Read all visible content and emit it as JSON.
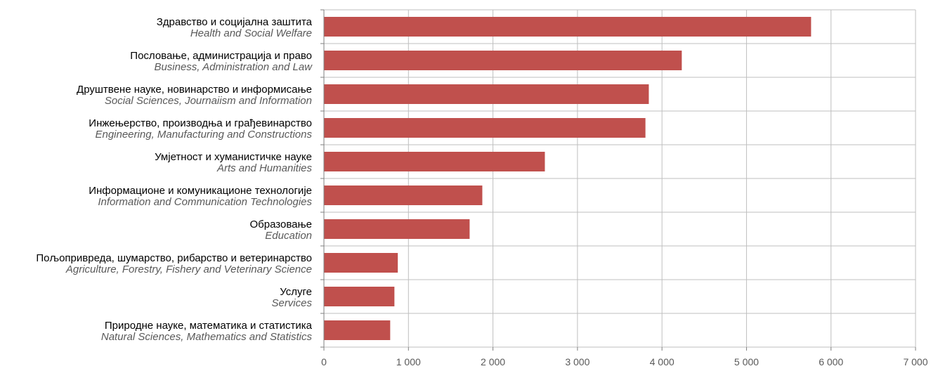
{
  "chart_data": {
    "type": "bar",
    "orientation": "horizontal",
    "categories": [
      {
        "label": "Здравство и социјална заштита",
        "label_en": "Health and Social Welfare"
      },
      {
        "label": "Пословање, администрација и право",
        "label_en": "Business, Administration and Law"
      },
      {
        "label": "Друштвене науке, новинарство и информисање",
        "label_en": "Social Sciences, Journaiism and Information"
      },
      {
        "label": "Инжењерство, производња и грађевинарство",
        "label_en": "Engineering, Manufacturing and Constructions"
      },
      {
        "label": "Умјетност и хуманистичке науке",
        "label_en": "Arts and Humanities"
      },
      {
        "label": "Информационе и комуникационе технологије",
        "label_en": "Information and Communication Technologies"
      },
      {
        "label": "Образовање",
        "label_en": "Education"
      },
      {
        "label": "Пољопривреда, шумарство, рибарство и ветеринарство",
        "label_en": "Agriculture, Forestry, Fishery and Veterinary Science"
      },
      {
        "label": "Услуге",
        "label_en": "Services"
      },
      {
        "label": "Природне науке,  математика и  статистика",
        "label_en": "Natural Sciences, Mathematics and Statistics"
      }
    ],
    "values": [
      5760,
      4230,
      3840,
      3800,
      2610,
      1870,
      1720,
      870,
      830,
      780
    ],
    "xlim": [
      0,
      7000
    ],
    "x_ticks": [
      0,
      1000,
      2000,
      3000,
      4000,
      5000,
      6000,
      7000
    ],
    "x_tick_labels": [
      "0",
      "1 000",
      "2 000",
      "3 000",
      "4 000",
      "5 000",
      "6 000",
      "7 000"
    ],
    "grid": {
      "vertical": true,
      "horizontal": true
    },
    "legend": "none",
    "colors": {
      "bar": "#c0504d",
      "grid": "#bfbfbf",
      "axis": "#7f7f7f"
    }
  }
}
